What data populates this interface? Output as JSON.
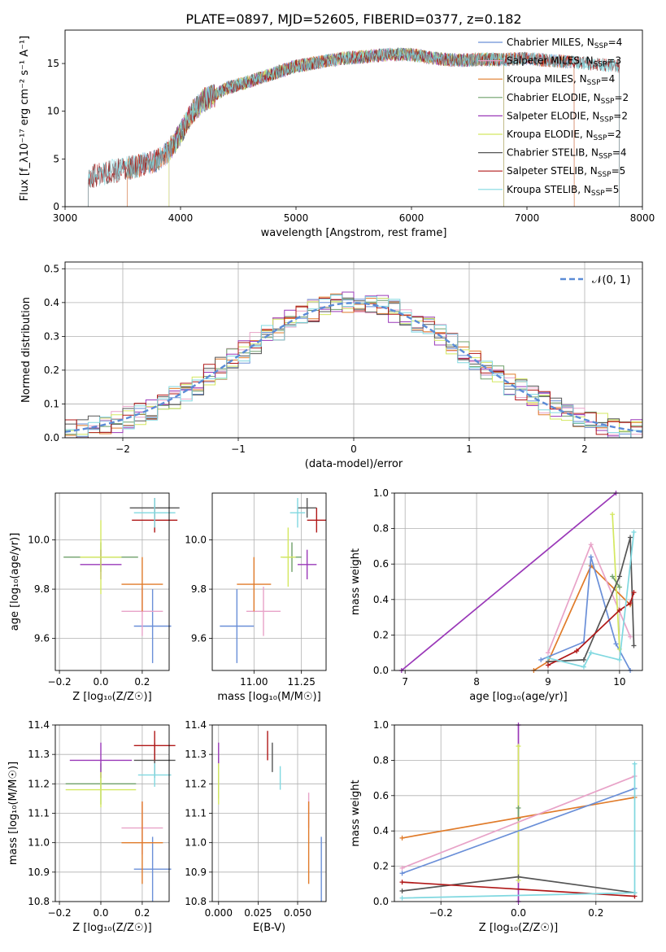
{
  "title": "PLATE=0897, MJD=52605, FIBERID=0377, z=0.182",
  "colors": {
    "chabrier_miles": "#6a8fd8",
    "salpeter_miles": "#e8a3c8",
    "kroupa_miles": "#e07b2a",
    "chabrier_elodie": "#6fa06a",
    "salpeter_elodie": "#9a38b8",
    "kroupa_elodie": "#d4e860",
    "chabrier_stelib": "#555555",
    "salpeter_stelib": "#b01818",
    "kroupa_stelib": "#80d8e0",
    "grid": "#b0b0b0",
    "normal_curve": "#5b8bd6"
  },
  "chart_data": [
    {
      "id": "spectrum",
      "type": "line",
      "xlabel": "wavelength [Angstrom, rest frame]",
      "ylabel": "Flux [f_λ10⁻¹⁷ erg cm⁻² s⁻¹ A⁻¹]",
      "xlim": [
        3000,
        8000
      ],
      "ylim": [
        0,
        18.5
      ],
      "xticks": [
        3000,
        4000,
        5000,
        6000,
        7000,
        8000
      ],
      "yticks": [
        0,
        5,
        10,
        15
      ],
      "grid": false,
      "legend_position": "right",
      "legend": [
        "Chabrier MILES, N_SSP=4",
        "Salpeter MILES, N_SSP=3",
        "Kroupa MILES, N_SSP=4",
        "Chabrier ELODIE, N_SSP=2",
        "Salpeter ELODIE, N_SSP=2",
        "Kroupa ELODIE, N_SSP=2",
        "Chabrier STELIB, N_SSP=4",
        "Salpeter STELIB, N_SSP=5",
        "Kroupa STELIB, N_SSP=5"
      ],
      "continuum": {
        "x": [
          3200,
          3400,
          3600,
          3800,
          3900,
          4000,
          4100,
          4200,
          4300,
          4400,
          4600,
          4800,
          5000,
          5200,
          5400,
          5600,
          5800,
          6000,
          6200,
          6400,
          6600,
          6800,
          7000,
          7200,
          7400,
          7600,
          7800
        ],
        "y": [
          3.2,
          3.8,
          4.3,
          5.0,
          6.0,
          7.8,
          10.0,
          11.3,
          11.8,
          12.5,
          13.2,
          14.0,
          14.8,
          15.2,
          15.6,
          15.8,
          16.0,
          16.0,
          15.6,
          15.4,
          15.5,
          15.5,
          15.6,
          15.4,
          15.2,
          15.0,
          14.8
        ]
      },
      "ranges": [
        {
          "series": "Chabrier MILES",
          "start": 3540,
          "end": 7410
        },
        {
          "series": "Salpeter MILES",
          "start": 3540,
          "end": 7410
        },
        {
          "series": "Kroupa MILES",
          "start": 3540,
          "end": 7410
        },
        {
          "series": "Chabrier ELODIE",
          "start": 3900,
          "end": 6800
        },
        {
          "series": "Salpeter ELODIE",
          "start": 3900,
          "end": 6800
        },
        {
          "series": "Kroupa ELODIE",
          "start": 3900,
          "end": 6800
        },
        {
          "series": "Chabrier STELIB",
          "start": 3200,
          "end": 7800
        },
        {
          "series": "Salpeter STELIB",
          "start": 3200,
          "end": 7800
        },
        {
          "series": "Kroupa STELIB",
          "start": 3200,
          "end": 7800
        }
      ]
    },
    {
      "id": "residuals",
      "type": "line",
      "xlabel": "(data-model)/error",
      "ylabel": "Normed distribution",
      "xlim": [
        -2.5,
        2.5
      ],
      "ylim": [
        0,
        0.52
      ],
      "xticks": [
        -2,
        -1,
        0,
        1,
        2
      ],
      "yticks": [
        0.0,
        0.1,
        0.2,
        0.3,
        0.4,
        0.5
      ],
      "grid": true,
      "legend_position": "top-right",
      "legend": [
        "𝒩(0, 1)"
      ],
      "bin_width": 0.1
    },
    {
      "id": "age_vs_Z",
      "type": "scatter",
      "xlabel": "Z [log₁₀(Z/Z☉)]",
      "ylabel": "age  [log₁₀(age/yr)]",
      "xlim": [
        -0.22,
        0.33
      ],
      "ylim": [
        9.47,
        10.19
      ],
      "xticks": [
        -0.2,
        0.0,
        0.2
      ],
      "yticks": [
        9.6,
        9.8,
        10.0
      ],
      "grid": true,
      "points": [
        {
          "x": 0.25,
          "y": 9.65,
          "xerr": 0.09,
          "yerr": 0.15,
          "color": "chabrier_miles"
        },
        {
          "x": 0.2,
          "y": 9.71,
          "xerr": 0.1,
          "yerr": 0.1,
          "color": "salpeter_miles"
        },
        {
          "x": 0.2,
          "y": 9.82,
          "xerr": 0.1,
          "yerr": 0.11,
          "color": "kroupa_miles"
        },
        {
          "x": 0.0,
          "y": 9.93,
          "xerr": 0.18,
          "yerr": 0.06,
          "color": "chabrier_elodie"
        },
        {
          "x": 0.0,
          "y": 9.9,
          "xerr": 0.1,
          "yerr": 0.06,
          "color": "salpeter_elodie"
        },
        {
          "x": 0.0,
          "y": 9.93,
          "xerr": 0.1,
          "yerr": 0.15,
          "color": "kroupa_elodie"
        },
        {
          "x": 0.26,
          "y": 10.13,
          "xerr": 0.12,
          "yerr": 0.04,
          "color": "chabrier_stelib"
        },
        {
          "x": 0.26,
          "y": 10.08,
          "xerr": 0.11,
          "yerr": 0.05,
          "color": "salpeter_stelib"
        },
        {
          "x": 0.26,
          "y": 10.11,
          "xerr": 0.1,
          "yerr": 0.06,
          "color": "kroupa_stelib"
        }
      ]
    },
    {
      "id": "age_vs_mass",
      "type": "scatter",
      "xlabel": "mass [log₁₀(M/M☉)]",
      "ylabel": "",
      "xlim": [
        10.78,
        11.38
      ],
      "ylim": [
        9.47,
        10.19
      ],
      "xticks": [
        11.0,
        11.25
      ],
      "yticks": [
        9.6,
        9.8,
        10.0
      ],
      "grid": true,
      "points": [
        {
          "x": 10.91,
          "y": 9.65,
          "xerr": 0.09,
          "yerr": 0.15,
          "color": "chabrier_miles"
        },
        {
          "x": 11.05,
          "y": 9.71,
          "xerr": 0.09,
          "yerr": 0.1,
          "color": "salpeter_miles"
        },
        {
          "x": 11.0,
          "y": 9.82,
          "xerr": 0.09,
          "yerr": 0.11,
          "color": "kroupa_miles"
        },
        {
          "x": 11.2,
          "y": 9.93,
          "xerr": 0.05,
          "yerr": 0.06,
          "color": "chabrier_elodie"
        },
        {
          "x": 11.28,
          "y": 9.9,
          "xerr": 0.05,
          "yerr": 0.06,
          "color": "salpeter_elodie"
        },
        {
          "x": 11.18,
          "y": 9.93,
          "xerr": 0.04,
          "yerr": 0.12,
          "color": "kroupa_elodie"
        },
        {
          "x": 11.28,
          "y": 10.13,
          "xerr": 0.05,
          "yerr": 0.04,
          "color": "chabrier_stelib"
        },
        {
          "x": 11.33,
          "y": 10.08,
          "xerr": 0.05,
          "yerr": 0.05,
          "color": "salpeter_stelib"
        },
        {
          "x": 11.23,
          "y": 10.11,
          "xerr": 0.04,
          "yerr": 0.06,
          "color": "kroupa_stelib"
        }
      ]
    },
    {
      "id": "weight_vs_age",
      "type": "line",
      "xlabel": "age  [log₁₀(age/yr)]",
      "ylabel": "mass weight",
      "xlim": [
        6.85,
        10.32
      ],
      "ylim": [
        0,
        1.0
      ],
      "xticks": [
        7,
        8,
        9,
        10
      ],
      "yticks": [
        0.0,
        0.2,
        0.4,
        0.6,
        0.8,
        1.0
      ],
      "grid": true,
      "series": [
        {
          "color": "salpeter_elodie",
          "x": [
            6.95,
            9.95
          ],
          "y": [
            0.0,
            1.0
          ]
        },
        {
          "color": "kroupa_miles",
          "x": [
            8.8,
            9.0,
            9.6,
            10.15
          ],
          "y": [
            0.0,
            0.05,
            0.59,
            0.37
          ]
        },
        {
          "color": "salpeter_miles",
          "x": [
            9.0,
            9.6,
            10.15
          ],
          "y": [
            0.1,
            0.71,
            0.19
          ]
        },
        {
          "color": "chabrier_miles",
          "x": [
            8.9,
            9.5,
            9.6,
            9.95,
            10.15
          ],
          "y": [
            0.06,
            0.16,
            0.64,
            0.15,
            0.0
          ]
        },
        {
          "color": "kroupa_elodie",
          "x": [
            9.9,
            10.0
          ],
          "y": [
            0.88,
            0.12
          ]
        },
        {
          "color": "chabrier_elodie",
          "x": [
            9.9,
            10.0
          ],
          "y": [
            0.53,
            0.47
          ]
        },
        {
          "color": "chabrier_stelib",
          "x": [
            9.0,
            9.5,
            10.0,
            10.15,
            10.2
          ],
          "y": [
            0.05,
            0.06,
            0.53,
            0.75,
            0.14
          ]
        },
        {
          "color": "salpeter_stelib",
          "x": [
            9.0,
            9.4,
            10.0,
            10.15,
            10.2
          ],
          "y": [
            0.03,
            0.11,
            0.34,
            0.38,
            0.44
          ]
        },
        {
          "color": "kroupa_stelib",
          "x": [
            9.0,
            9.5,
            9.6,
            10.0,
            10.2
          ],
          "y": [
            0.07,
            0.02,
            0.1,
            0.06,
            0.78
          ]
        }
      ]
    },
    {
      "id": "mass_vs_Z",
      "type": "scatter",
      "xlabel": "Z [log₁₀(Z/Z☉)]",
      "ylabel": "mass [log₁₀(M/M☉)]",
      "xlim": [
        -0.22,
        0.33
      ],
      "ylim": [
        10.8,
        11.4
      ],
      "xticks": [
        -0.2,
        0.0,
        0.2
      ],
      "yticks": [
        10.8,
        10.9,
        11.0,
        11.1,
        11.2,
        11.3,
        11.4
      ],
      "grid": true,
      "points": [
        {
          "x": 0.25,
          "y": 10.91,
          "xerr": 0.09,
          "yerr": 0.11,
          "color": "chabrier_miles"
        },
        {
          "x": 0.2,
          "y": 11.05,
          "xerr": 0.1,
          "yerr": 0.09,
          "color": "salpeter_miles"
        },
        {
          "x": 0.2,
          "y": 11.0,
          "xerr": 0.1,
          "yerr": 0.14,
          "color": "kroupa_miles"
        },
        {
          "x": 0.0,
          "y": 11.2,
          "xerr": 0.17,
          "yerr": 0.07,
          "color": "chabrier_elodie"
        },
        {
          "x": 0.0,
          "y": 11.28,
          "xerr": 0.15,
          "yerr": 0.06,
          "color": "salpeter_elodie"
        },
        {
          "x": 0.0,
          "y": 11.18,
          "xerr": 0.17,
          "yerr": 0.06,
          "color": "kroupa_elodie"
        },
        {
          "x": 0.26,
          "y": 11.28,
          "xerr": 0.1,
          "yerr": 0.06,
          "color": "chabrier_stelib"
        },
        {
          "x": 0.26,
          "y": 11.33,
          "xerr": 0.1,
          "yerr": 0.05,
          "color": "salpeter_stelib"
        },
        {
          "x": 0.26,
          "y": 11.23,
          "xerr": 0.08,
          "yerr": 0.04,
          "color": "kroupa_stelib"
        }
      ]
    },
    {
      "id": "mass_vs_ebv",
      "type": "scatter",
      "xlabel": "E(B-V)",
      "ylabel": "",
      "xlim": [
        -0.004,
        0.068
      ],
      "ylim": [
        10.8,
        11.4
      ],
      "xticks": [
        0.0,
        0.025,
        0.05
      ],
      "yticks": [
        10.8,
        10.9,
        11.0,
        11.1,
        11.2,
        11.3,
        11.4
      ],
      "grid": true,
      "points": [
        {
          "x": 0.065,
          "y": 10.91,
          "xerr": 0,
          "yerr": 0.11,
          "color": "chabrier_miles"
        },
        {
          "x": 0.057,
          "y": 11.11,
          "xerr": 0,
          "yerr": 0.06,
          "color": "salpeter_miles"
        },
        {
          "x": 0.057,
          "y": 11.0,
          "xerr": 0,
          "yerr": 0.14,
          "color": "kroupa_miles"
        },
        {
          "x": 0.0,
          "y": 11.22,
          "xerr": 0,
          "yerr": 0.07,
          "color": "chabrier_elodie"
        },
        {
          "x": 0.0,
          "y": 11.3,
          "xerr": 0,
          "yerr": 0.04,
          "color": "salpeter_elodie"
        },
        {
          "x": 0.0,
          "y": 11.2,
          "xerr": 0,
          "yerr": 0.07,
          "color": "kroupa_elodie"
        },
        {
          "x": 0.034,
          "y": 11.29,
          "xerr": 0,
          "yerr": 0.05,
          "color": "chabrier_stelib"
        },
        {
          "x": 0.031,
          "y": 11.33,
          "xerr": 0,
          "yerr": 0.05,
          "color": "salpeter_stelib"
        },
        {
          "x": 0.039,
          "y": 11.22,
          "xerr": 0,
          "yerr": 0.04,
          "color": "kroupa_stelib"
        }
      ]
    },
    {
      "id": "weight_vs_Z",
      "type": "line",
      "xlabel": "Z [log₁₀(Z/Z☉)]",
      "ylabel": "mass weight",
      "xlim": [
        -0.32,
        0.32
      ],
      "ylim": [
        0,
        1.0
      ],
      "xticks": [
        -0.2,
        0.0,
        0.2
      ],
      "yticks": [
        0.0,
        0.2,
        0.4,
        0.6,
        0.8,
        1.0
      ],
      "grid": true,
      "series": [
        {
          "color": "salpeter_elodie",
          "x": [
            0.0,
            0.0
          ],
          "y": [
            0.0,
            1.0
          ]
        },
        {
          "color": "kroupa_elodie",
          "x": [
            0.0,
            0.0
          ],
          "y": [
            0.12,
            0.88
          ]
        },
        {
          "color": "chabrier_elodie",
          "x": [
            0.0,
            0.0
          ],
          "y": [
            0.47,
            0.53
          ]
        },
        {
          "color": "kroupa_miles",
          "x": [
            -0.3,
            0.3
          ],
          "y": [
            0.36,
            0.59
          ]
        },
        {
          "color": "salpeter_miles",
          "x": [
            -0.3,
            0.3
          ],
          "y": [
            0.19,
            0.71
          ]
        },
        {
          "color": "chabrier_miles",
          "x": [
            -0.3,
            0.3
          ],
          "y": [
            0.16,
            0.64
          ]
        },
        {
          "color": "chabrier_stelib",
          "x": [
            -0.3,
            0.0,
            0.3
          ],
          "y": [
            0.06,
            0.14,
            0.05
          ]
        },
        {
          "color": "salpeter_stelib",
          "x": [
            -0.3,
            0.3
          ],
          "y": [
            0.11,
            0.03
          ]
        },
        {
          "color": "kroupa_stelib",
          "x": [
            -0.3,
            0.3,
            0.3
          ],
          "y": [
            0.02,
            0.05,
            0.78
          ]
        }
      ]
    }
  ]
}
